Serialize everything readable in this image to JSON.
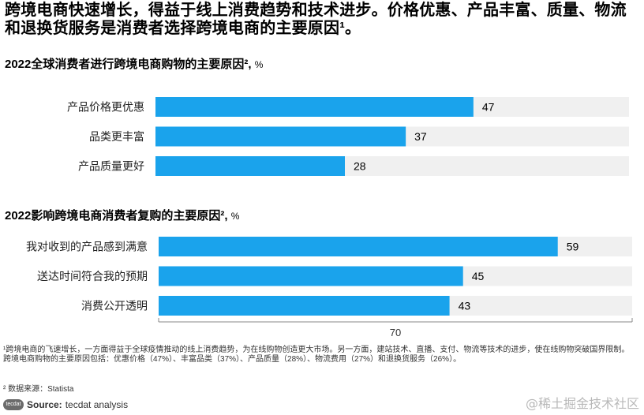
{
  "headline": "跨境电商快速增长，得益于线上消费趋势和技术进步。价格优惠、产品丰富、质量、物流和退换货服务是消费者选择跨境电商的主要原因¹。",
  "chart_data": [
    {
      "type": "bar",
      "orientation": "horizontal",
      "title": "2022全球消费者进行跨境电商购物的主要原因²,",
      "unit": "%",
      "categories": [
        "产品价格更优惠",
        "品类更丰富",
        "产品质量更好"
      ],
      "values": [
        47,
        37,
        28
      ],
      "xlim": [
        0,
        70
      ],
      "bar_color": "#1aa3ec",
      "track_color": "#f0f0f0"
    },
    {
      "type": "bar",
      "orientation": "horizontal",
      "title": "2022影响跨境电商消费者复购的主要原因²,",
      "unit": "%",
      "categories": [
        "我对收到的产品感到满意",
        "送达时间符合我的预期",
        "消费公开透明"
      ],
      "values": [
        59,
        45,
        43
      ],
      "xlim": [
        0,
        70
      ],
      "axis_tick": "70",
      "bar_color": "#1aa3ec",
      "track_color": "#f0f0f0"
    }
  ],
  "footnote": "¹跨境电商的飞速增长，一方面得益于全球疫情推动的线上消费趋势，为在线购物创造更大市场。另一方面，建站技术、直播、支付、物流等技术的进步，使在线购物突破国界限制。跨境电商购物的主要原因包括：优惠价格（47%）、丰富品类（37%）、产品质量（28%）、物流费用（27%）和退换货服务（26%）。",
  "footnote2": "² 数据来源：Statista",
  "source": {
    "logo_text": "tecdat",
    "label": "Source:",
    "text": "tecdat analysis"
  },
  "watermark": "@稀土掘金技术社区"
}
